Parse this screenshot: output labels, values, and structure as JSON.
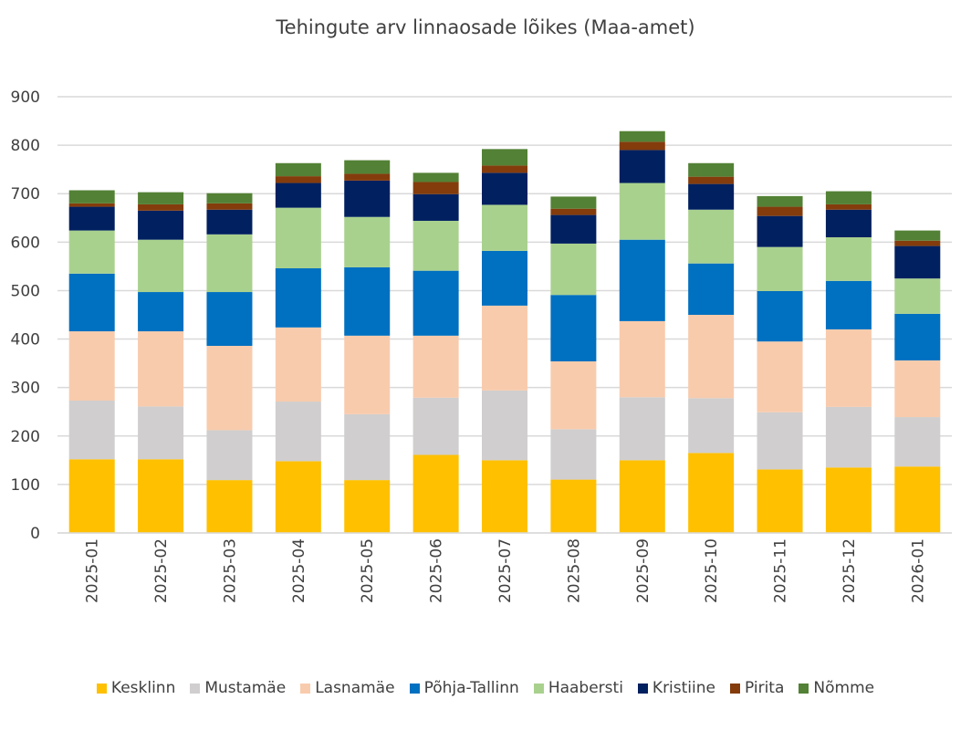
{
  "chart_data": {
    "type": "bar",
    "stacked": true,
    "title": "Tehingute arv linnaosade lõikes (Maa-amet)",
    "xlabel": "",
    "ylabel": "",
    "ylim": [
      0,
      900
    ],
    "yticks": [
      "0",
      "100",
      "200",
      "300",
      "400",
      "500",
      "600",
      "700",
      "800",
      "900"
    ],
    "grid": true,
    "legend_position": "bottom",
    "categories": [
      "2025-01",
      "2025-02",
      "2025-03",
      "2025-04",
      "2025-05",
      "2025-06",
      "2025-07",
      "2025-08",
      "2025-09",
      "2025-10",
      "2025-11",
      "2025-12",
      "2026-01"
    ],
    "series": [
      {
        "name": "Kesklinn",
        "color": "#FFC000",
        "values": [
          152,
          152,
          109,
          148,
          109,
          161,
          150,
          110,
          150,
          165,
          131,
          135,
          137
        ]
      },
      {
        "name": "Mustamäe",
        "color": "#D0CECE",
        "values": [
          121,
          109,
          103,
          123,
          136,
          118,
          144,
          104,
          130,
          113,
          118,
          125,
          102
        ]
      },
      {
        "name": "Lasnamäe",
        "color": "#F8CBAD",
        "values": [
          143,
          155,
          174,
          153,
          162,
          128,
          175,
          140,
          157,
          172,
          146,
          160,
          117
        ]
      },
      {
        "name": "Põhja-Tallinn",
        "color": "#0070C0",
        "values": [
          119,
          81,
          111,
          122,
          141,
          134,
          113,
          137,
          168,
          106,
          104,
          100,
          96
        ]
      },
      {
        "name": "Haabersti",
        "color": "#A9D18E",
        "values": [
          89,
          108,
          119,
          125,
          104,
          103,
          95,
          106,
          117,
          111,
          91,
          90,
          73
        ]
      },
      {
        "name": "Kristiine",
        "color": "#002060",
        "values": [
          49,
          60,
          51,
          51,
          75,
          55,
          66,
          59,
          68,
          53,
          64,
          57,
          67
        ]
      },
      {
        "name": "Pirita",
        "color": "#843C0C",
        "values": [
          7,
          13,
          13,
          14,
          14,
          25,
          15,
          13,
          17,
          15,
          19,
          11,
          11
        ]
      },
      {
        "name": "Nõmme",
        "color": "#538135",
        "values": [
          27,
          25,
          21,
          27,
          28,
          19,
          34,
          25,
          22,
          28,
          22,
          27,
          21
        ]
      }
    ]
  }
}
